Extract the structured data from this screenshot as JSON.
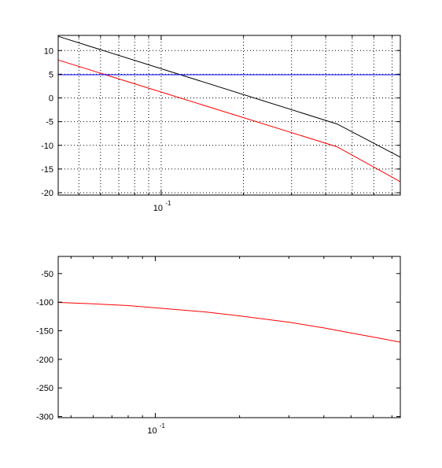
{
  "chart_data": [
    {
      "type": "line",
      "xscale": "log",
      "xlim": [
        0.042,
        0.75
      ],
      "ylim": [
        -20.5,
        13.2
      ],
      "grid": true,
      "yticks": [
        -20,
        -15,
        -10,
        -5,
        0,
        5,
        10
      ],
      "ytick_labels": [
        "-20",
        "-15",
        "-10",
        "-5",
        "0",
        "5",
        "10"
      ],
      "xtick_base": "10",
      "xtick_exp": "-1",
      "series": [
        {
          "color": "#000000",
          "x": [
            0.042,
            0.44,
            0.75
          ],
          "y": [
            13.0,
            -5.5,
            -12.5
          ]
        },
        {
          "color": "#ff0000",
          "x": [
            0.042,
            0.44,
            0.75
          ],
          "y": [
            8.0,
            -10.3,
            -17.7
          ]
        },
        {
          "color": "#0000ff",
          "x": [
            0.042,
            0.75
          ],
          "y": [
            4.9,
            4.9
          ]
        }
      ]
    },
    {
      "type": "line",
      "xscale": "log",
      "xlim": [
        0.045,
        0.75
      ],
      "ylim": [
        -302,
        -20
      ],
      "grid": false,
      "yticks": [
        -300,
        -250,
        -200,
        -150,
        -100,
        -50
      ],
      "ytick_labels": [
        "-300",
        "-250",
        "-200",
        "-150",
        "-100",
        "-50"
      ],
      "xtick_base": "10",
      "xtick_exp": "-1",
      "series": [
        {
          "color": "#ff0000",
          "x": [
            0.045,
            0.06,
            0.08,
            0.1,
            0.15,
            0.2,
            0.3,
            0.4,
            0.5,
            0.6,
            0.75
          ],
          "y": [
            -100.5,
            -103,
            -106,
            -110,
            -117,
            -124,
            -135,
            -145,
            -154,
            -161,
            -170
          ]
        }
      ]
    }
  ]
}
